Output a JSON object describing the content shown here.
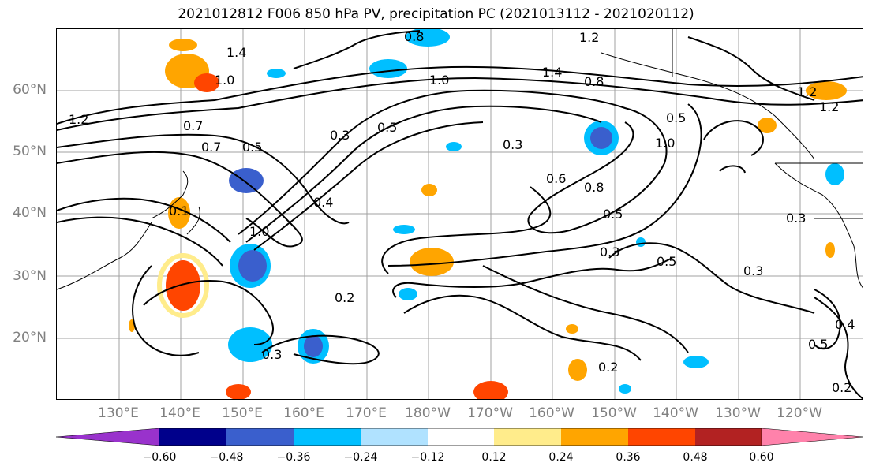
{
  "title": "2021012812 F006 850 hPa PV, precipitation PC (2021013112 - 2021020112)",
  "lat_labels": [
    "60°N",
    "50°N",
    "40°N",
    "30°N",
    "20°N"
  ],
  "lon_labels": [
    "130°E",
    "140°E",
    "150°E",
    "160°E",
    "170°E",
    "180°W",
    "170°W",
    "160°W",
    "150°W",
    "140°W",
    "130°W",
    "120°W"
  ],
  "colorbar": {
    "ticks": [
      "−0.60",
      "−0.48",
      "−0.36",
      "−0.24",
      "−0.12",
      "0.12",
      "0.24",
      "0.36",
      "0.48",
      "0.60"
    ],
    "colors": [
      "#9932cc",
      "#00008b",
      "#3a5fcd",
      "#00bfff",
      "#b0e2ff",
      "#ffffff",
      "#ffec8b",
      "#ffa500",
      "#ff4500",
      "#b22222",
      "#ff82ab"
    ]
  },
  "contour_labels": [
    "0.8",
    "1.2",
    "1.4",
    "1.0",
    "1.0",
    "1.4",
    "0.8",
    "1.2",
    "1.2",
    "0.7",
    "0.5",
    "0.3",
    "0.5",
    "0.3",
    "0.5",
    "0.7",
    "1.0",
    "0.6",
    "0.8",
    "0.5",
    "0.4",
    "0.3",
    "0.5",
    "0.3",
    "0.3",
    "0.2",
    "0.3",
    "0.2",
    "0.5",
    "0.4",
    "0.2",
    "1.2",
    "0.1",
    "1.0"
  ]
}
